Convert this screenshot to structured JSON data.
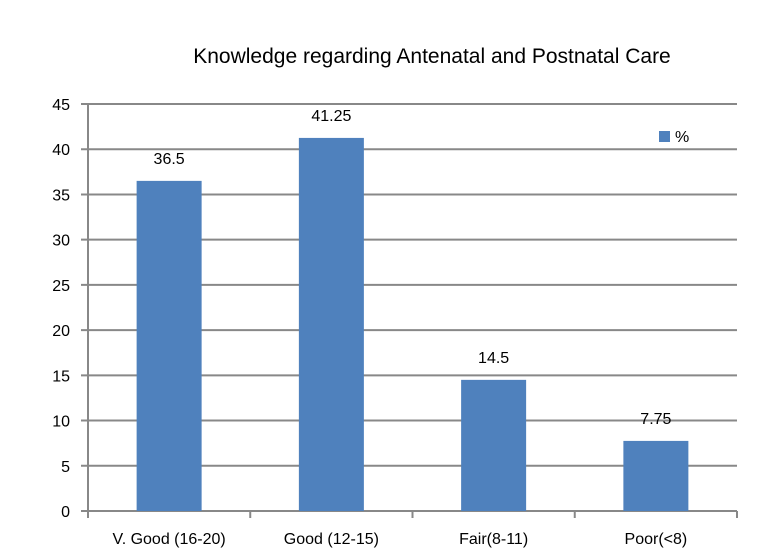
{
  "chart_data": {
    "type": "bar",
    "title": "Knowledge regarding Antenatal and Postnatal Care",
    "categories": [
      "V. Good (16-20)",
      "Good (12-15)",
      "Fair(8-11)",
      "Poor(<8)"
    ],
    "series": [
      {
        "name": "%",
        "values": [
          36.5,
          41.25,
          14.5,
          7.75
        ],
        "color": "#4f81bd"
      }
    ],
    "value_labels": [
      "36.5",
      "41.25",
      "14.5",
      "7.75"
    ],
    "yticks": [
      "0",
      "5",
      "10",
      "15",
      "20",
      "25",
      "30",
      "35",
      "40",
      "45"
    ],
    "ylim": [
      0,
      45
    ],
    "grid": true,
    "legend": "top-right",
    "xlabel": "",
    "ylabel": ""
  }
}
